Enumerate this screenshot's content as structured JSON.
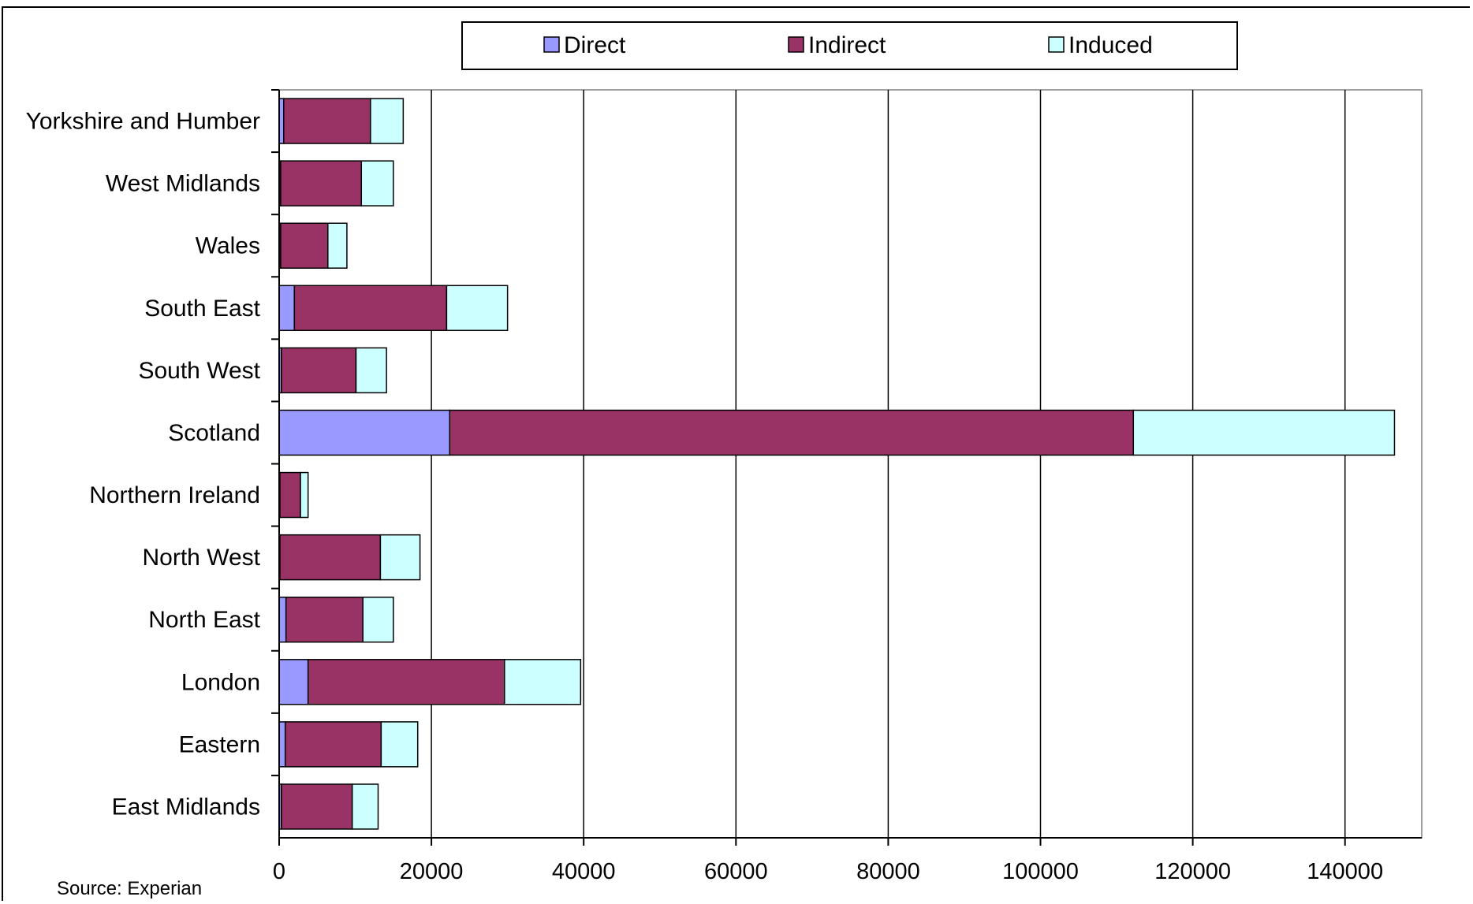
{
  "chart_data": {
    "type": "bar",
    "orientation": "horizontal",
    "stacked": true,
    "categories": [
      "Yorkshire and Humber",
      "West Midlands",
      "Wales",
      "South East",
      "South West",
      "Scotland",
      "Northern Ireland",
      "North West",
      "North East",
      "London",
      "Eastern",
      "East Midlands"
    ],
    "series": [
      {
        "name": "Direct",
        "color": "#9999ff",
        "values": [
          600,
          200,
          200,
          2000,
          300,
          22400,
          100,
          100,
          900,
          3800,
          800,
          300
        ]
      },
      {
        "name": "Indirect",
        "color": "#993366",
        "values": [
          11400,
          10600,
          6200,
          20000,
          9800,
          89800,
          2700,
          13200,
          10100,
          25800,
          12600,
          9300
        ]
      },
      {
        "name": "Induced",
        "color": "#ccffff",
        "values": [
          4300,
          4200,
          2500,
          8000,
          4000,
          34300,
          1000,
          5200,
          4000,
          10000,
          4800,
          3400
        ]
      }
    ],
    "xlim": [
      0,
      150000
    ],
    "xticks": [
      0,
      20000,
      40000,
      60000,
      80000,
      100000,
      120000,
      140000
    ],
    "grid": "vertical",
    "legend": "top"
  },
  "source": "Source: Experian"
}
